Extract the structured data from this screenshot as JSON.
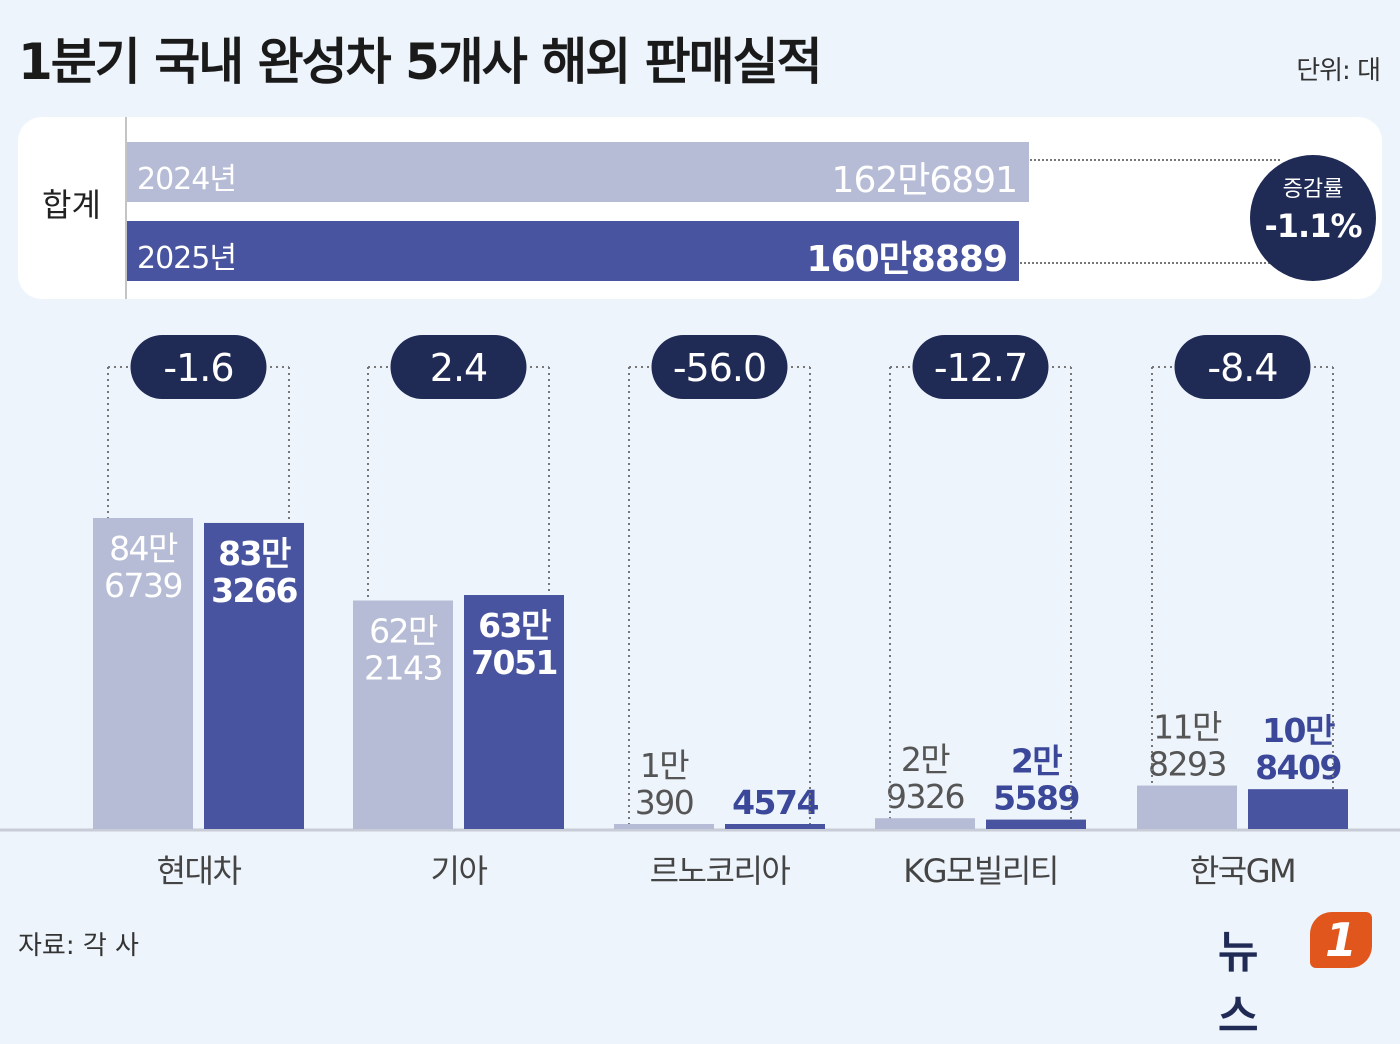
{
  "title": "1분기 국내 완성차 5개사 해외 판매실적",
  "unit": "단위: 대",
  "source": "자료: 각 사",
  "logo": {
    "text": "뉴스",
    "badge": "1"
  },
  "total": {
    "label": "합계",
    "rows": [
      {
        "year": "2024년",
        "value_text": "162만6891",
        "value": 1626891
      },
      {
        "year": "2025년",
        "value_text": "160만8889",
        "value": 1608889
      }
    ],
    "rate_label": "증감률",
    "rate_value": "-1.1%"
  },
  "colors": {
    "y2024": "#b6bcd5",
    "y2025": "#48549f",
    "badge": "#1f2a55",
    "logo_accent": "#e0561c"
  },
  "chart_data": {
    "type": "bar",
    "categories": [
      "현대차",
      "기아",
      "르노코리아",
      "KG모빌리티",
      "한국GM"
    ],
    "series": [
      {
        "name": "2024년",
        "values": [
          846739,
          622143,
          10390,
          29326,
          118293
        ],
        "labels": [
          [
            "84만",
            "6739"
          ],
          [
            "62만",
            "2143"
          ],
          [
            "1만",
            "390"
          ],
          [
            "2만",
            "9326"
          ],
          [
            "11만",
            "8293"
          ]
        ]
      },
      {
        "name": "2025년",
        "values": [
          833266,
          637051,
          4574,
          25589,
          108409
        ],
        "labels": [
          [
            "83만",
            "3266"
          ],
          [
            "63만",
            "7051"
          ],
          [
            "4574"
          ],
          [
            "2만",
            "5589"
          ],
          [
            "10만",
            "8409"
          ]
        ]
      }
    ],
    "change": [
      "-1.6",
      "2.4",
      "-56.0",
      "-12.7",
      "-8.4"
    ],
    "ylim": [
      0,
      1000000
    ]
  }
}
